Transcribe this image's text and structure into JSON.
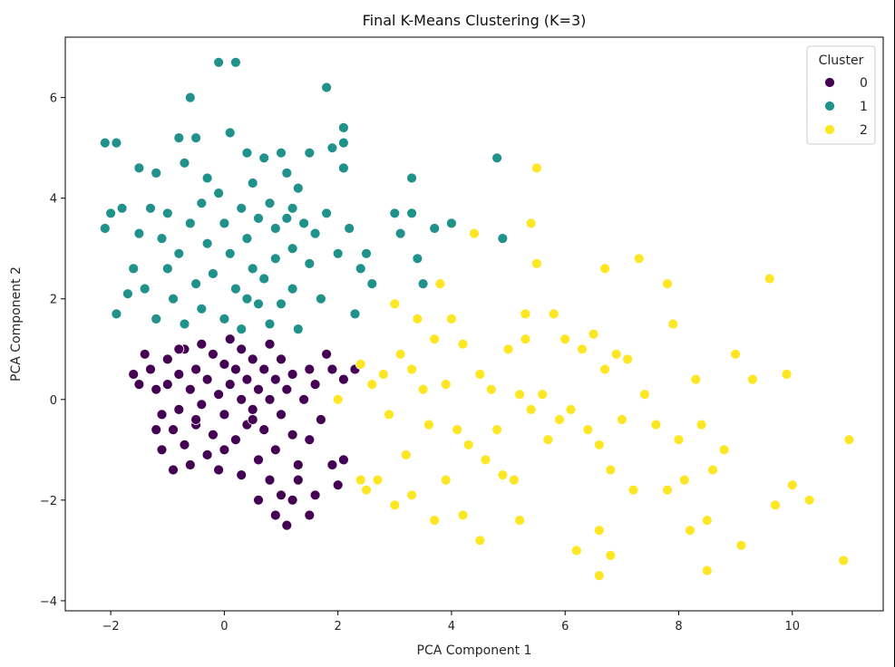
{
  "chart_data": {
    "type": "scatter",
    "title": "Final K-Means Clustering (K=3)",
    "xlabel": "PCA Component 1",
    "ylabel": "PCA Component 2",
    "xlim": [
      -2.8,
      11.6
    ],
    "ylim": [
      -4.2,
      7.2
    ],
    "xticks": [
      -2,
      0,
      2,
      4,
      6,
      8,
      10
    ],
    "xtick_labels": [
      "−2",
      "0",
      "2",
      "4",
      "6",
      "8",
      "10"
    ],
    "yticks": [
      -4,
      -2,
      0,
      2,
      4,
      6
    ],
    "ytick_labels": [
      "−4",
      "−2",
      "0",
      "2",
      "4",
      "6"
    ],
    "grid": false,
    "legend": {
      "title": "Cluster",
      "placement": "top-right"
    },
    "series": [
      {
        "name": "0",
        "color": "#440154",
        "points": [
          [
            -1.6,
            0.5
          ],
          [
            -1.5,
            0.3
          ],
          [
            -1.4,
            0.9
          ],
          [
            -1.3,
            0.6
          ],
          [
            -1.2,
            0.2
          ],
          [
            -1.1,
            -0.3
          ],
          [
            -1.1,
            -1.0
          ],
          [
            -1.0,
            0.8
          ],
          [
            -1.0,
            0.3
          ],
          [
            -0.9,
            -0.6
          ],
          [
            -0.9,
            -1.4
          ],
          [
            -0.8,
            0.5
          ],
          [
            -0.8,
            -0.2
          ],
          [
            -0.7,
            1.0
          ],
          [
            -0.7,
            -0.9
          ],
          [
            -0.6,
            0.2
          ],
          [
            -0.6,
            -1.3
          ],
          [
            -0.5,
            0.6
          ],
          [
            -0.5,
            -0.5
          ],
          [
            -0.4,
            1.1
          ],
          [
            -0.4,
            -0.1
          ],
          [
            -0.3,
            -1.1
          ],
          [
            -0.3,
            0.4
          ],
          [
            -0.2,
            0.9
          ],
          [
            -0.2,
            -0.7
          ],
          [
            -0.1,
            0.1
          ],
          [
            -0.1,
            -1.4
          ],
          [
            0.0,
            0.7
          ],
          [
            0.0,
            -0.3
          ],
          [
            0.1,
            1.2
          ],
          [
            0.1,
            0.3
          ],
          [
            0.2,
            -0.8
          ],
          [
            0.2,
            0.6
          ],
          [
            0.3,
            0.0
          ],
          [
            0.3,
            1.0
          ],
          [
            0.4,
            -0.5
          ],
          [
            0.4,
            0.4
          ],
          [
            0.5,
            0.8
          ],
          [
            0.5,
            -0.2
          ],
          [
            0.6,
            0.2
          ],
          [
            0.6,
            -1.2
          ],
          [
            0.7,
            0.6
          ],
          [
            0.7,
            -0.6
          ],
          [
            0.8,
            1.1
          ],
          [
            0.8,
            0.0
          ],
          [
            0.9,
            -1.0
          ],
          [
            0.9,
            0.4
          ],
          [
            1.0,
            0.8
          ],
          [
            1.0,
            -0.3
          ],
          [
            1.1,
            0.2
          ],
          [
            1.2,
            -0.7
          ],
          [
            1.2,
            0.5
          ],
          [
            1.3,
            -1.3
          ],
          [
            1.4,
            0.0
          ],
          [
            1.5,
            -0.8
          ],
          [
            1.6,
            0.3
          ],
          [
            1.7,
            -0.4
          ],
          [
            1.8,
            0.9
          ],
          [
            1.9,
            -1.3
          ],
          [
            2.0,
            -1.7
          ],
          [
            0.6,
            -2.0
          ],
          [
            0.8,
            -1.6
          ],
          [
            0.9,
            -2.3
          ],
          [
            1.0,
            -1.9
          ],
          [
            1.1,
            -2.5
          ],
          [
            1.2,
            -2.0
          ],
          [
            1.3,
            -1.6
          ],
          [
            1.5,
            -2.3
          ],
          [
            1.6,
            -1.9
          ],
          [
            2.1,
            -1.2
          ],
          [
            2.3,
            0.6
          ],
          [
            -0.5,
            -0.4
          ],
          [
            0.5,
            -0.4
          ],
          [
            1.5,
            0.6
          ],
          [
            -1.2,
            -0.6
          ],
          [
            0.0,
            -1.0
          ],
          [
            1.9,
            0.6
          ],
          [
            2.1,
            0.4
          ],
          [
            0.3,
            -1.5
          ],
          [
            -0.8,
            1.0
          ]
        ]
      },
      {
        "name": "1",
        "color": "#21918c",
        "points": [
          [
            -2.1,
            5.1
          ],
          [
            -1.9,
            5.1
          ],
          [
            -2.1,
            3.4
          ],
          [
            -2.0,
            3.7
          ],
          [
            -1.9,
            1.7
          ],
          [
            -1.8,
            3.8
          ],
          [
            -1.7,
            2.1
          ],
          [
            -1.6,
            2.6
          ],
          [
            -1.5,
            4.6
          ],
          [
            -1.5,
            3.3
          ],
          [
            -1.4,
            2.2
          ],
          [
            -1.3,
            3.8
          ],
          [
            -1.2,
            4.5
          ],
          [
            -1.2,
            1.6
          ],
          [
            -1.1,
            3.2
          ],
          [
            -1.0,
            2.6
          ],
          [
            -1.0,
            3.7
          ],
          [
            -0.9,
            2.0
          ],
          [
            -0.8,
            5.2
          ],
          [
            -0.8,
            2.9
          ],
          [
            -0.7,
            4.7
          ],
          [
            -0.7,
            1.5
          ],
          [
            -0.6,
            6.0
          ],
          [
            -0.6,
            3.5
          ],
          [
            -0.5,
            2.3
          ],
          [
            -0.5,
            5.2
          ],
          [
            -0.4,
            3.9
          ],
          [
            -0.4,
            1.8
          ],
          [
            -0.3,
            3.1
          ],
          [
            -0.2,
            2.5
          ],
          [
            -0.1,
            4.1
          ],
          [
            -0.1,
            6.7
          ],
          [
            0.0,
            3.5
          ],
          [
            0.0,
            1.6
          ],
          [
            0.1,
            2.9
          ],
          [
            0.1,
            5.3
          ],
          [
            0.2,
            6.7
          ],
          [
            0.2,
            2.2
          ],
          [
            0.3,
            3.8
          ],
          [
            0.3,
            1.4
          ],
          [
            0.4,
            4.9
          ],
          [
            0.4,
            3.2
          ],
          [
            0.5,
            2.6
          ],
          [
            0.5,
            4.3
          ],
          [
            0.6,
            1.9
          ],
          [
            0.6,
            3.6
          ],
          [
            0.7,
            4.8
          ],
          [
            0.7,
            2.4
          ],
          [
            0.8,
            3.9
          ],
          [
            0.8,
            1.5
          ],
          [
            0.9,
            3.4
          ],
          [
            0.9,
            2.8
          ],
          [
            1.0,
            4.9
          ],
          [
            1.0,
            1.9
          ],
          [
            1.1,
            3.6
          ],
          [
            1.1,
            4.5
          ],
          [
            1.2,
            2.2
          ],
          [
            1.2,
            3.0
          ],
          [
            1.3,
            4.2
          ],
          [
            1.3,
            1.4
          ],
          [
            1.4,
            3.5
          ],
          [
            1.5,
            2.7
          ],
          [
            1.5,
            4.9
          ],
          [
            1.6,
            3.3
          ],
          [
            1.7,
            2.0
          ],
          [
            1.8,
            6.2
          ],
          [
            1.8,
            3.7
          ],
          [
            1.9,
            5.0
          ],
          [
            2.0,
            2.9
          ],
          [
            2.1,
            5.4
          ],
          [
            2.1,
            4.6
          ],
          [
            2.2,
            3.4
          ],
          [
            2.3,
            1.7
          ],
          [
            2.4,
            2.6
          ],
          [
            2.5,
            2.9
          ],
          [
            2.6,
            2.3
          ],
          [
            3.0,
            3.7
          ],
          [
            3.1,
            3.3
          ],
          [
            3.3,
            4.4
          ],
          [
            3.3,
            3.7
          ],
          [
            3.4,
            2.8
          ],
          [
            3.5,
            2.3
          ],
          [
            3.7,
            3.4
          ],
          [
            4.0,
            3.5
          ],
          [
            4.8,
            4.8
          ],
          [
            4.9,
            3.2
          ],
          [
            2.1,
            5.1
          ],
          [
            1.2,
            3.8
          ],
          [
            -0.3,
            4.4
          ],
          [
            0.4,
            2.0
          ]
        ]
      },
      {
        "name": "2",
        "color": "#fde725",
        "points": [
          [
            2.0,
            0.0
          ],
          [
            2.4,
            0.7
          ],
          [
            2.4,
            -1.6
          ],
          [
            2.5,
            -1.8
          ],
          [
            2.6,
            0.3
          ],
          [
            2.7,
            -1.6
          ],
          [
            2.8,
            0.5
          ],
          [
            2.9,
            -0.3
          ],
          [
            3.0,
            -2.1
          ],
          [
            3.0,
            1.9
          ],
          [
            3.1,
            0.9
          ],
          [
            3.2,
            -1.1
          ],
          [
            3.3,
            0.6
          ],
          [
            3.3,
            -1.9
          ],
          [
            3.4,
            1.6
          ],
          [
            3.5,
            0.2
          ],
          [
            3.6,
            -0.5
          ],
          [
            3.7,
            1.2
          ],
          [
            3.7,
            -2.4
          ],
          [
            3.8,
            2.3
          ],
          [
            3.9,
            0.3
          ],
          [
            3.9,
            -1.6
          ],
          [
            4.0,
            1.6
          ],
          [
            4.1,
            -0.6
          ],
          [
            4.2,
            1.1
          ],
          [
            4.2,
            -2.3
          ],
          [
            4.3,
            -0.9
          ],
          [
            4.4,
            3.3
          ],
          [
            4.5,
            0.5
          ],
          [
            4.5,
            -2.8
          ],
          [
            4.6,
            -1.2
          ],
          [
            4.7,
            0.2
          ],
          [
            4.8,
            -0.6
          ],
          [
            4.9,
            -1.5
          ],
          [
            5.0,
            1.0
          ],
          [
            5.1,
            -1.6
          ],
          [
            5.2,
            0.1
          ],
          [
            5.2,
            -2.4
          ],
          [
            5.3,
            1.7
          ],
          [
            5.3,
            1.2
          ],
          [
            5.4,
            -0.2
          ],
          [
            5.4,
            3.5
          ],
          [
            5.5,
            4.6
          ],
          [
            5.5,
            2.7
          ],
          [
            5.6,
            0.1
          ],
          [
            5.7,
            -0.8
          ],
          [
            5.8,
            1.7
          ],
          [
            5.9,
            -0.4
          ],
          [
            6.0,
            1.2
          ],
          [
            6.1,
            -0.2
          ],
          [
            6.2,
            -3.0
          ],
          [
            6.3,
            1.0
          ],
          [
            6.4,
            -0.6
          ],
          [
            6.5,
            1.3
          ],
          [
            6.6,
            -0.9
          ],
          [
            6.6,
            -2.6
          ],
          [
            6.7,
            2.6
          ],
          [
            6.7,
            0.6
          ],
          [
            6.8,
            -3.1
          ],
          [
            6.8,
            -1.4
          ],
          [
            6.9,
            0.9
          ],
          [
            7.0,
            -0.4
          ],
          [
            7.1,
            0.8
          ],
          [
            7.2,
            -1.8
          ],
          [
            7.3,
            2.8
          ],
          [
            7.4,
            0.1
          ],
          [
            7.6,
            -0.5
          ],
          [
            7.8,
            2.3
          ],
          [
            7.9,
            1.5
          ],
          [
            8.0,
            -0.8
          ],
          [
            8.1,
            -1.6
          ],
          [
            8.2,
            -2.6
          ],
          [
            8.3,
            0.4
          ],
          [
            8.4,
            -0.5
          ],
          [
            8.5,
            -3.4
          ],
          [
            8.6,
            -1.4
          ],
          [
            8.8,
            -1.0
          ],
          [
            9.0,
            0.9
          ],
          [
            9.1,
            -2.9
          ],
          [
            9.3,
            0.4
          ],
          [
            9.6,
            2.4
          ],
          [
            9.7,
            -2.1
          ],
          [
            9.9,
            0.5
          ],
          [
            10.0,
            -1.7
          ],
          [
            10.3,
            -2.0
          ],
          [
            10.9,
            -3.2
          ],
          [
            11.0,
            -0.8
          ],
          [
            6.6,
            -3.5
          ],
          [
            7.8,
            -1.8
          ],
          [
            8.5,
            -2.4
          ]
        ]
      }
    ]
  }
}
